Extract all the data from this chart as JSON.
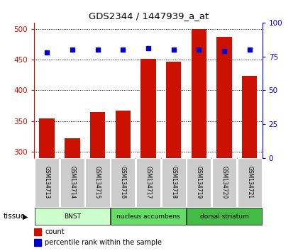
{
  "title": "GDS2344 / 1447939_a_at",
  "samples": [
    "GSM134713",
    "GSM134714",
    "GSM134715",
    "GSM134716",
    "GSM134717",
    "GSM134718",
    "GSM134719",
    "GSM134720",
    "GSM134721"
  ],
  "counts": [
    355,
    322,
    365,
    367,
    451,
    446,
    500,
    487,
    424
  ],
  "percentiles": [
    78,
    80,
    80,
    80,
    81,
    80,
    80,
    79,
    80
  ],
  "ylim_left": [
    290,
    510
  ],
  "ylim_right": [
    0,
    100
  ],
  "yticks_left": [
    300,
    350,
    400,
    450,
    500
  ],
  "yticks_right": [
    0,
    25,
    50,
    75,
    100
  ],
  "tissue_groups": [
    {
      "label": "BNST",
      "start": 0,
      "end": 3,
      "color": "#ccffcc"
    },
    {
      "label": "nucleus accumbens",
      "start": 3,
      "end": 6,
      "color": "#66dd66"
    },
    {
      "label": "dorsal striatum",
      "start": 6,
      "end": 9,
      "color": "#44bb44"
    }
  ],
  "bar_color": "#cc1100",
  "dot_color": "#0000cc",
  "bar_bottom": 290,
  "tissue_label": "tissue",
  "legend_count_label": "count",
  "legend_pct_label": "percentile rank within the sample",
  "tick_color_left": "#cc1100",
  "tick_color_right": "#0000cc",
  "sample_box_color": "#cccccc"
}
